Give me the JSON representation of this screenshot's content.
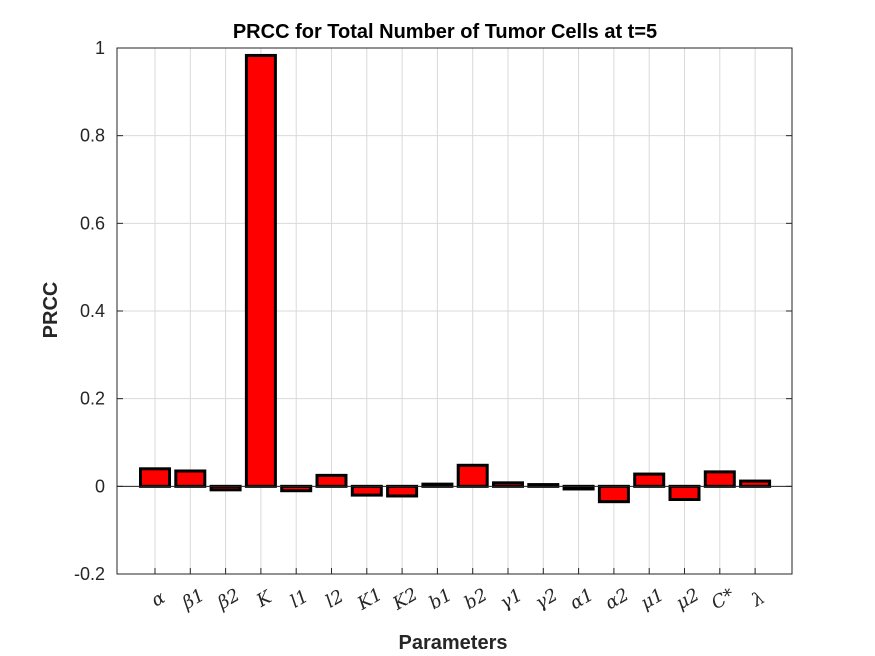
{
  "chart_data": {
    "type": "bar",
    "title": "PRCC for Total Number of Tumor Cells at t=5",
    "xlabel": "Parameters",
    "ylabel": "PRCC",
    "ylim": [
      -0.2,
      1
    ],
    "yticks": [
      "-0.2",
      "0",
      "0.2",
      "0.4",
      "0.6",
      "0.8",
      "1"
    ],
    "grid": true,
    "categories": [
      "α",
      "β1",
      "β2",
      "K",
      "l1",
      "l2",
      "K1",
      "K2",
      "b1",
      "b2",
      "γ1",
      "γ2",
      "α1",
      "α2",
      "μ1",
      "μ2",
      "C*",
      "λ"
    ],
    "values": [
      0.04,
      0.035,
      -0.008,
      0.983,
      -0.01,
      0.025,
      -0.02,
      -0.022,
      0.005,
      0.048,
      0.008,
      0.004,
      -0.006,
      -0.035,
      0.028,
      -0.03,
      0.033,
      0.012
    ],
    "bar_color": "#ff0000",
    "edge_color": "#000000"
  }
}
